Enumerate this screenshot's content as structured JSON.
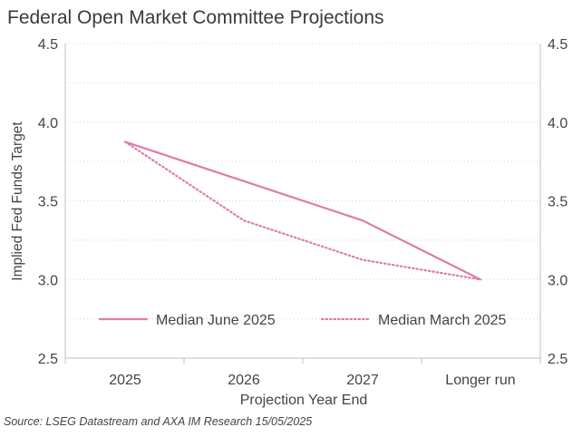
{
  "title": "Federal Open Market Committee Projections",
  "source": "Source: LSEG Datastream and AXA IM Research 15/05/2025",
  "chart_data": {
    "type": "line",
    "title": "Federal Open Market Committee Projections",
    "categories": [
      "2025",
      "2026",
      "2027",
      "Longer run"
    ],
    "xlabel": "Projection Year End",
    "ylabel": "Implied Fed Funds Target",
    "ylim": [
      2.5,
      4.5
    ],
    "yticks": [
      "2.5",
      "3.0",
      "3.5",
      "4.0",
      "4.5"
    ],
    "secondary_y_axis": true,
    "grid": "horizontal dotted",
    "legend_position": "inside-bottom",
    "series": [
      {
        "name": "Median June 2025",
        "values": [
          3.875,
          3.625,
          3.375,
          3.0
        ],
        "style": "solid",
        "color": "#e07ba8"
      },
      {
        "name": "Median March 2025",
        "values": [
          3.875,
          3.375,
          3.125,
          3.0
        ],
        "style": "dotted",
        "color": "#e07ba8"
      }
    ]
  }
}
